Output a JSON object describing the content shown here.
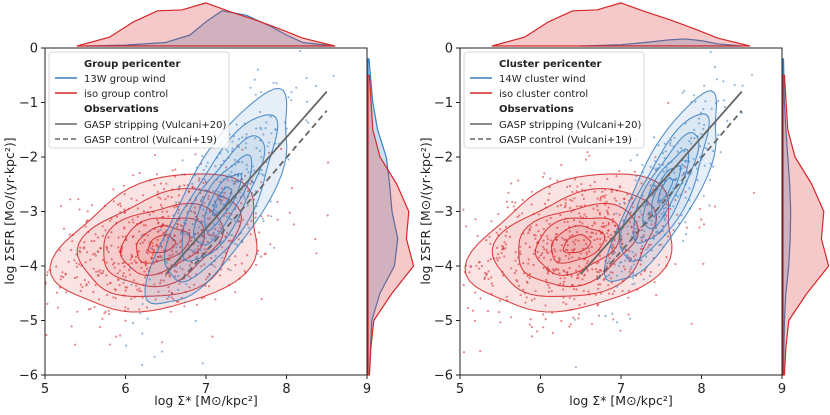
{
  "chart_data": [
    {
      "type": "scatter",
      "title": "",
      "xlabel": "log Σ* [M⊙/kpc²]",
      "ylabel": "log ΣSFR [M⊙/(yr·kpc²)]",
      "xlim": [
        5,
        9
      ],
      "ylim": [
        -6,
        0
      ],
      "xticks": [
        "5",
        "6",
        "7",
        "8",
        "9"
      ],
      "yticks": [
        "−6",
        "−5",
        "−4",
        "−3",
        "−2",
        "−1",
        "0"
      ],
      "legend": {
        "position": "upper-left",
        "sim_title": "Group pericenter",
        "obs_title": "Observations",
        "entries": [
          "13W group wind",
          "iso group control",
          "GASP stripping (Vulcani+20)",
          "GASP control (Vulcani+19)"
        ]
      },
      "series": [
        {
          "name": "13W group wind",
          "color": "#3a7fc1",
          "kind": "kde+scatter",
          "center": [
            7.2,
            -2.8
          ],
          "spread": [
            0.38,
            0.85
          ],
          "rho": 0.78,
          "top_hist": {
            "x": [
              5.5,
              6.0,
              6.5,
              6.8,
              7.0,
              7.2,
              7.5,
              7.8,
              8.0,
              8.2,
              8.6
            ],
            "y": [
              0.0,
              0.02,
              0.08,
              0.25,
              0.55,
              0.8,
              0.7,
              0.45,
              0.25,
              0.08,
              0.0
            ]
          },
          "right_hist": {
            "y": [
              -6,
              -5,
              -4.5,
              -4,
              -3.5,
              -3,
              -2.5,
              -2,
              -1.5,
              -1,
              -0.2
            ],
            "x": [
              0.03,
              0.08,
              0.25,
              0.55,
              0.62,
              0.5,
              0.45,
              0.38,
              0.2,
              0.1,
              0.02
            ]
          }
        },
        {
          "name": "iso group control",
          "color": "#d62728",
          "kind": "kde+scatter",
          "center": [
            6.45,
            -3.6
          ],
          "spread": [
            0.55,
            0.55
          ],
          "rho": 0.3,
          "top_hist": {
            "x": [
              5.4,
              5.8,
              6.1,
              6.4,
              6.7,
              7.0,
              7.3,
              7.6,
              7.9,
              8.2,
              8.6
            ],
            "y": [
              0.0,
              0.2,
              0.55,
              0.8,
              0.82,
              0.98,
              0.78,
              0.6,
              0.4,
              0.18,
              0.0
            ]
          },
          "right_hist": {
            "y": [
              -6,
              -5.5,
              -5,
              -4.5,
              -4,
              -3.5,
              -3,
              -2.5,
              -2,
              -1.5,
              -0.5
            ],
            "x": [
              0.03,
              0.06,
              0.12,
              0.5,
              0.95,
              0.8,
              0.85,
              0.6,
              0.25,
              0.1,
              0.03
            ]
          }
        },
        {
          "name": "GASP stripping (Vulcani+20)",
          "color": "#666666",
          "kind": "line",
          "x": [
            6.5,
            8.5
          ],
          "y": [
            -4.15,
            -0.8
          ]
        },
        {
          "name": "GASP control (Vulcani+19)",
          "color": "#666666",
          "kind": "dashed-line",
          "x": [
            6.7,
            8.5
          ],
          "y": [
            -4.25,
            -1.15
          ]
        }
      ]
    },
    {
      "type": "scatter",
      "title": "",
      "xlabel": "log Σ* [M⊙/kpc²]",
      "ylabel": "log ΣSFR [M⊙/(yr·kpc²)]",
      "xlim": [
        5,
        9
      ],
      "ylim": [
        -6,
        0
      ],
      "xticks": [
        "5",
        "6",
        "7",
        "8",
        "9"
      ],
      "yticks": [
        "−6",
        "−5",
        "−4",
        "−3",
        "−2",
        "−1",
        "0"
      ],
      "legend": {
        "position": "upper-left",
        "sim_title": "Cluster pericenter",
        "obs_title": "Observations",
        "entries": [
          "14W cluster wind",
          "iso cluster control",
          "GASP stripping (Vulcani+20)",
          "GASP control (Vulcani+19)"
        ]
      },
      "series": [
        {
          "name": "14W cluster wind",
          "color": "#3a7fc1",
          "kind": "kde+scatter",
          "center": [
            7.55,
            -2.6
          ],
          "spread": [
            0.3,
            0.75
          ],
          "rho": 0.8,
          "top_hist": {
            "x": [
              6.5,
              7.0,
              7.3,
              7.6,
              7.8,
              8.0,
              8.2,
              8.5
            ],
            "y": [
              0.0,
              0.03,
              0.08,
              0.14,
              0.16,
              0.12,
              0.05,
              0.0
            ]
          },
          "right_hist": {
            "y": [
              -6,
              -5,
              -4.5,
              -4,
              -3.5,
              -3,
              -2.5,
              -2,
              -1.5,
              -1,
              -0.2
            ],
            "x": [
              0.01,
              0.03,
              0.06,
              0.12,
              0.15,
              0.16,
              0.14,
              0.1,
              0.06,
              0.03,
              0.01
            ]
          }
        },
        {
          "name": "iso cluster control",
          "color": "#d62728",
          "kind": "kde+scatter",
          "center": [
            6.45,
            -3.6
          ],
          "spread": [
            0.55,
            0.55
          ],
          "rho": 0.3,
          "top_hist": {
            "x": [
              5.4,
              5.8,
              6.1,
              6.4,
              6.7,
              7.0,
              7.3,
              7.6,
              7.9,
              8.2,
              8.6
            ],
            "y": [
              0.0,
              0.2,
              0.55,
              0.8,
              0.82,
              0.98,
              0.78,
              0.6,
              0.4,
              0.18,
              0.0
            ]
          },
          "right_hist": {
            "y": [
              -6,
              -5.5,
              -5,
              -4.5,
              -4,
              -3.5,
              -3,
              -2.5,
              -2,
              -1.5,
              -0.5
            ],
            "x": [
              0.03,
              0.06,
              0.12,
              0.5,
              0.95,
              0.8,
              0.85,
              0.6,
              0.25,
              0.1,
              0.03
            ]
          }
        },
        {
          "name": "GASP stripping (Vulcani+20)",
          "color": "#666666",
          "kind": "line",
          "x": [
            6.5,
            8.5
          ],
          "y": [
            -4.15,
            -0.8
          ]
        },
        {
          "name": "GASP control (Vulcani+19)",
          "color": "#666666",
          "kind": "dashed-line",
          "x": [
            6.7,
            8.5
          ],
          "y": [
            -4.25,
            -1.15
          ]
        }
      ]
    }
  ]
}
